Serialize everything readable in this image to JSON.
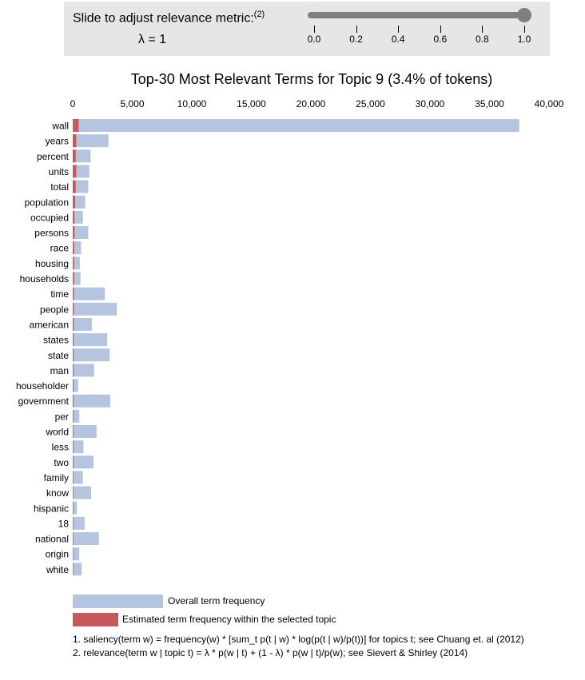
{
  "slider": {
    "title": "Slide to adjust relevance metric:",
    "footnote_ref": "(2)",
    "lambda_text": "λ = 1",
    "value": 1.0,
    "min": 0.0,
    "max": 1.0,
    "tick_labels": [
      "0.0",
      "0.2",
      "0.4",
      "0.6",
      "0.8",
      "1.0"
    ],
    "color": "#808080"
  },
  "chart_data": {
    "type": "bar",
    "orientation": "horizontal",
    "title": "Top-30 Most Relevant Terms for Topic 9 (3.4% of tokens)",
    "xlim": [
      0,
      40000
    ],
    "xticks": [
      0,
      5000,
      10000,
      15000,
      20000,
      25000,
      30000,
      35000,
      40000
    ],
    "xtick_labels": [
      "0",
      "5,000",
      "10,000",
      "15,000",
      "20,000",
      "25,000",
      "30,000",
      "35,000",
      "40,000"
    ],
    "categories": [
      "wall",
      "years",
      "percent",
      "units",
      "total",
      "population",
      "occupied",
      "persons",
      "race",
      "housing",
      "households",
      "time",
      "people",
      "american",
      "states",
      "state",
      "man",
      "householder",
      "government",
      "per",
      "world",
      "less",
      "two",
      "family",
      "know",
      "hispanic",
      "18",
      "national",
      "origin",
      "white"
    ],
    "series": [
      {
        "name": "Overall term frequency",
        "color": "#b6c5df",
        "values": [
          37500,
          3000,
          1500,
          1400,
          1300,
          1050,
          850,
          1300,
          700,
          600,
          650,
          2700,
          3700,
          1600,
          2900,
          3100,
          1800,
          450,
          3150,
          550,
          2000,
          900,
          1750,
          850,
          1550,
          350,
          1000,
          2200,
          550,
          750
        ]
      },
      {
        "name": "Estimated term frequency within the selected topic",
        "color": "#c8585a",
        "values": [
          500,
          300,
          250,
          300,
          250,
          200,
          150,
          150,
          120,
          110,
          110,
          100,
          100,
          90,
          80,
          80,
          70,
          70,
          70,
          60,
          60,
          60,
          60,
          50,
          50,
          50,
          50,
          50,
          40,
          40
        ]
      }
    ],
    "legend": [
      {
        "label": "Overall term frequency",
        "color": "#b6c5df"
      },
      {
        "label": "Estimated term frequency within the selected topic",
        "color": "#c8585a"
      }
    ]
  },
  "footnotes": [
    "1. saliency(term w) = frequency(w) * [sum_t p(t | w) * log(p(t | w)/p(t))] for topics t; see Chuang et. al (2012)",
    "2. relevance(term w | topic t) = λ * p(w | t) + (1 - λ) * p(w | t)/p(w); see Sievert & Shirley (2014)"
  ]
}
